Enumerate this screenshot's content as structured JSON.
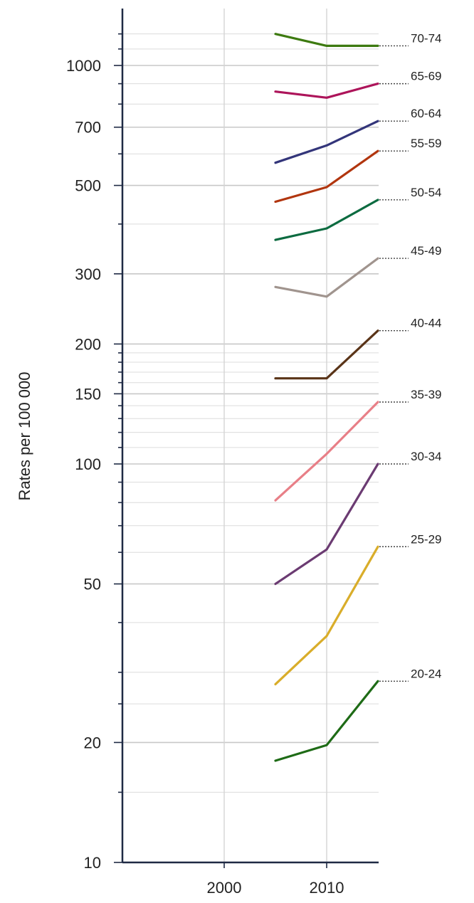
{
  "chart_data": {
    "type": "line",
    "title": "",
    "xlabel": "",
    "ylabel": "Rates per 100 000",
    "y_scale": "log",
    "ylim": [
      10,
      1300
    ],
    "xlim": [
      1990,
      2015
    ],
    "x_ticks": [
      2000,
      2010
    ],
    "y_ticks": [
      10,
      20,
      50,
      100,
      150,
      200,
      300,
      500,
      700,
      1000
    ],
    "grid": "horizontal at log minor ticks, vertical at x ticks",
    "x": [
      2005,
      2010,
      2015
    ],
    "series": [
      {
        "name": "20-24",
        "color": "#1e6b16",
        "values": [
          18,
          19.7,
          28.5
        ]
      },
      {
        "name": "25-29",
        "color": "#d9ad2a",
        "values": [
          28,
          37,
          62
        ]
      },
      {
        "name": "30-34",
        "color": "#6b3b72",
        "values": [
          50,
          61,
          100
        ]
      },
      {
        "name": "35-39",
        "color": "#e87f87",
        "values": [
          81,
          106,
          143
        ]
      },
      {
        "name": "40-44",
        "color": "#5a3418",
        "values": [
          164,
          164,
          216
        ]
      },
      {
        "name": "45-49",
        "color": "#a0948e",
        "values": [
          278,
          263,
          328
        ]
      },
      {
        "name": "50-54",
        "color": "#0c6b40",
        "values": [
          365,
          390,
          460
        ]
      },
      {
        "name": "55-59",
        "color": "#b1350e",
        "values": [
          455,
          495,
          610
        ]
      },
      {
        "name": "60-64",
        "color": "#33357a",
        "values": [
          570,
          630,
          725
        ]
      },
      {
        "name": "65-69",
        "color": "#ad145a",
        "values": [
          860,
          830,
          900
        ]
      },
      {
        "name": "70-74",
        "color": "#3d7a10",
        "values": [
          1200,
          1120,
          1120
        ]
      }
    ]
  }
}
